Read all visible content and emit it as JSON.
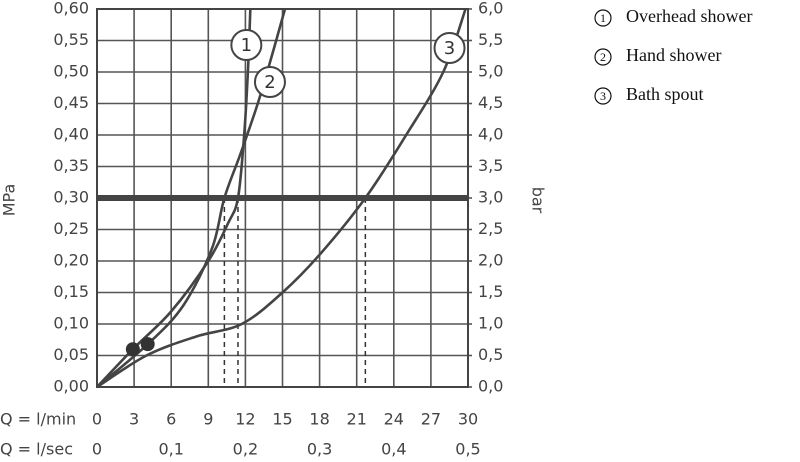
{
  "chart_data": {
    "type": "line",
    "ylabel": "MPa",
    "y2label": "bar",
    "xlabel": "Q = l/min",
    "x2label": "Q = l/sec",
    "xlim": [
      0,
      30
    ],
    "xticks": [
      0,
      3,
      6,
      9,
      12,
      15,
      18,
      21,
      24,
      27,
      30
    ],
    "x2lim": [
      0,
      0.5
    ],
    "x2ticks": [
      0,
      {
        "value": 0.1,
        "label": "0,1"
      },
      {
        "value": 0.2,
        "label": "0,2"
      },
      {
        "value": 0.3,
        "label": "0,3"
      },
      {
        "value": 0.4,
        "label": "0,4"
      },
      {
        "value": 0.5,
        "label": "0,5"
      }
    ],
    "ylim": [
      0,
      0.6
    ],
    "yticks": [
      {
        "value": 0,
        "label": "0,00"
      },
      {
        "value": 0.05,
        "label": "0,05"
      },
      {
        "value": 0.1,
        "label": "0,10"
      },
      {
        "value": 0.15,
        "label": "0,15"
      },
      {
        "value": 0.2,
        "label": "0,20"
      },
      {
        "value": 0.25,
        "label": "0,25"
      },
      {
        "value": 0.3,
        "label": "0,30"
      },
      {
        "value": 0.35,
        "label": "0,35"
      },
      {
        "value": 0.4,
        "label": "0,40"
      },
      {
        "value": 0.45,
        "label": "0,45"
      },
      {
        "value": 0.5,
        "label": "0,50"
      },
      {
        "value": 0.55,
        "label": "0,55"
      },
      {
        "value": 0.6,
        "label": "0,60"
      }
    ],
    "y2lim": [
      0,
      6
    ],
    "y2ticks": [
      {
        "value": 0,
        "label": "0,0"
      },
      {
        "value": 0.5,
        "label": "0,5"
      },
      {
        "value": 1,
        "label": "1,0"
      },
      {
        "value": 1.5,
        "label": "1,5"
      },
      {
        "value": 2,
        "label": "2,0"
      },
      {
        "value": 2.5,
        "label": "2,5"
      },
      {
        "value": 3,
        "label": "3,0"
      },
      {
        "value": 3.5,
        "label": "3,5"
      },
      {
        "value": 4,
        "label": "4,0"
      },
      {
        "value": 4.5,
        "label": "4,5"
      },
      {
        "value": 5,
        "label": "5,0"
      },
      {
        "value": 5.5,
        "label": "5,5"
      },
      {
        "value": 6,
        "label": "6,0"
      }
    ],
    "grid": true,
    "reference_line": 0.3,
    "drop_lines": [
      10.3,
      11.4,
      21.7
    ],
    "points": [
      {
        "x": 2.9,
        "y": 0.06
      },
      {
        "x": 4.1,
        "y": 0.068
      }
    ],
    "series": [
      {
        "name": "Overhead shower",
        "label": "1",
        "color": "#444444",
        "x": [
          0,
          2.9,
          6,
          9,
          10.6,
          11.4,
          11.9,
          12.2,
          12.4
        ],
        "values": [
          0,
          0.06,
          0.12,
          0.2,
          0.26,
          0.3,
          0.4,
          0.5,
          0.6
        ]
      },
      {
        "name": "Hand shower",
        "label": "2",
        "color": "#444444",
        "x": [
          0,
          4.1,
          7,
          9.3,
          10.3,
          11.6,
          13,
          14.2,
          15.2
        ],
        "values": [
          0,
          0.068,
          0.13,
          0.22,
          0.3,
          0.37,
          0.45,
          0.53,
          0.6
        ]
      },
      {
        "name": "Bath spout",
        "label": "3",
        "color": "#444444",
        "x": [
          0,
          4,
          8,
          11.7,
          15,
          18,
          21.7,
          25,
          28,
          29.8
        ],
        "values": [
          0,
          0.05,
          0.08,
          0.1,
          0.15,
          0.21,
          0.3,
          0.4,
          0.5,
          0.6
        ]
      }
    ],
    "legend_position": "right"
  }
}
